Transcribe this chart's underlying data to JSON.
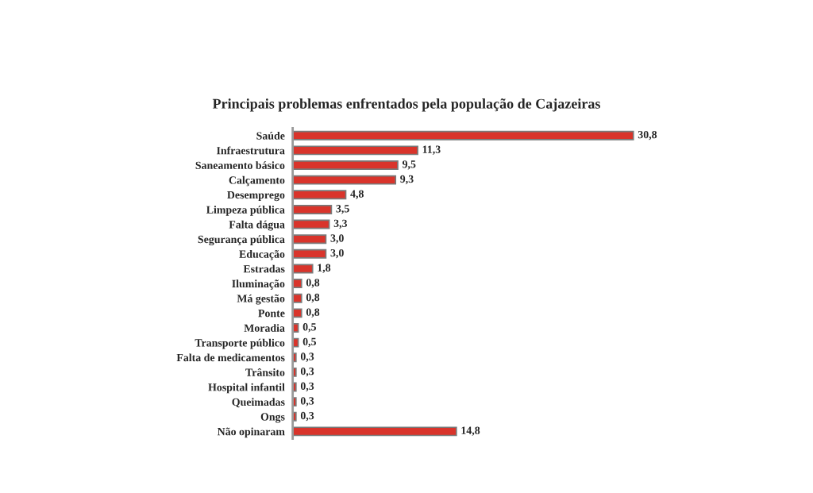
{
  "chart_data": {
    "type": "bar",
    "orientation": "horizontal",
    "title": "Principais problemas enfrentados pela população de Cajazeiras",
    "categories": [
      "Saúde",
      "Infraestrutura",
      "Saneamento básico",
      "Calçamento",
      "Desemprego",
      "Limpeza pública",
      "Falta dágua",
      "Segurança pública",
      "Educação",
      "Estradas",
      "Iluminação",
      "Má gestão",
      "Ponte",
      "Moradia",
      "Transporte público",
      "Falta de medicamentos",
      "Trânsito",
      "Hospital infantil",
      "Queimadas",
      "Ongs",
      "Não opinaram"
    ],
    "values": [
      30.8,
      11.3,
      9.5,
      9.3,
      4.8,
      3.5,
      3.3,
      3.0,
      3.0,
      1.8,
      0.8,
      0.8,
      0.8,
      0.5,
      0.5,
      0.3,
      0.3,
      0.3,
      0.3,
      0.3,
      14.8
    ],
    "value_labels": [
      "30,8",
      "11,3",
      "9,5",
      "9,3",
      "4,8",
      "3,5",
      "3,3",
      "3,0",
      "3,0",
      "1,8",
      "0,8",
      "0,8",
      "0,8",
      "0,5",
      "0,5",
      "0,3",
      "0,3",
      "0,3",
      "0,3",
      "0,3",
      "14,8"
    ],
    "color": "#d9342b",
    "tick_labels": "y",
    "grid": false,
    "legend": false
  }
}
